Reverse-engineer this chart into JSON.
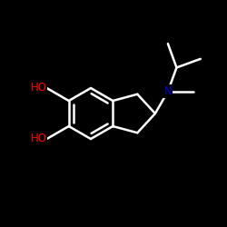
{
  "background_color": "#000000",
  "bond_color": "#ffffff",
  "atom_colors": {
    "O": "#ff0000",
    "N": "#0000cc",
    "C": "#ffffff"
  },
  "lw": 1.8,
  "figsize": [
    2.5,
    2.5
  ],
  "dpi": 100
}
